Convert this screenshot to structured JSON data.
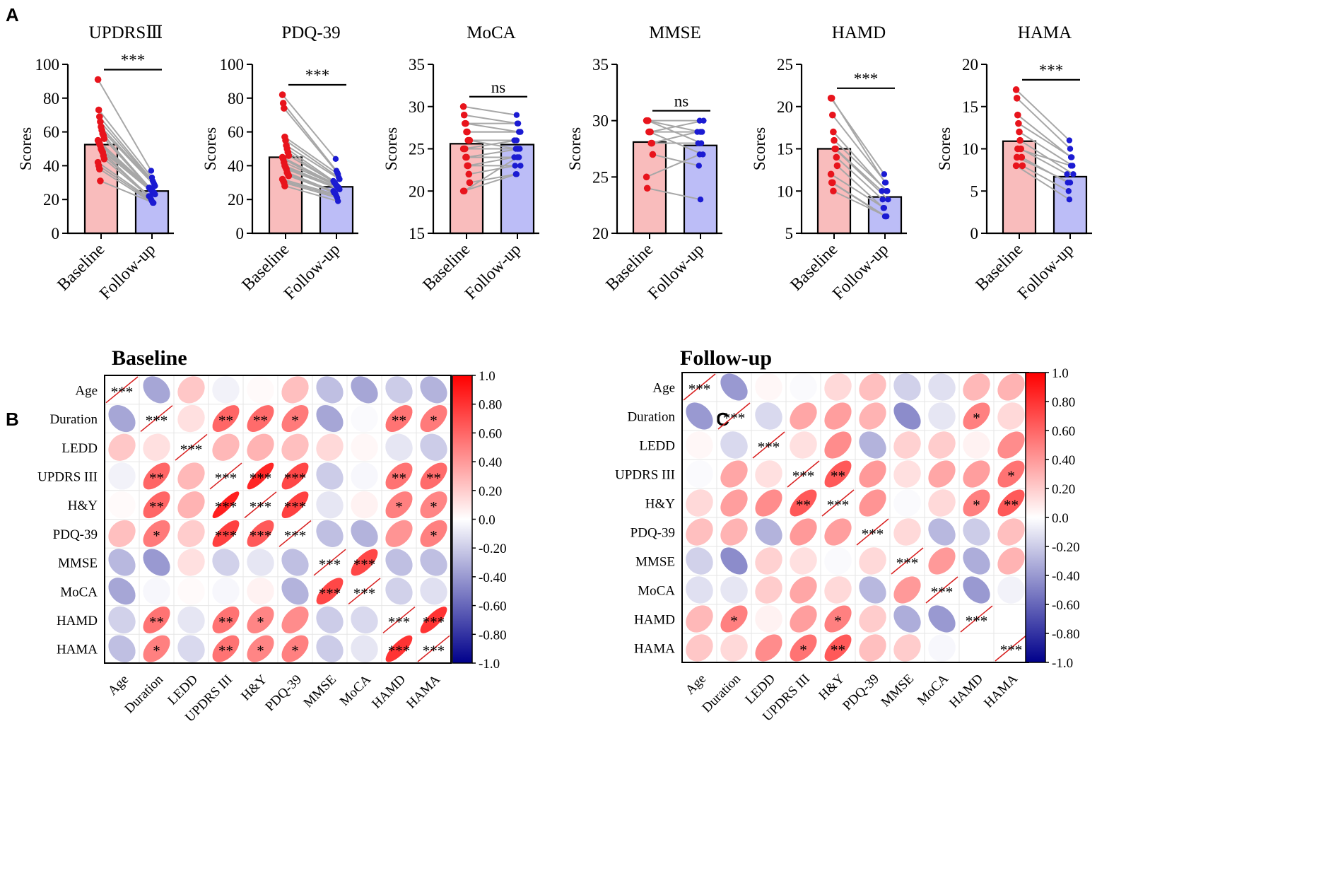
{
  "panel_labels": {
    "a": "A",
    "b": "B",
    "c": "C"
  },
  "colors": {
    "baseline_bar": "#f9bcbc",
    "followup_bar": "#bcbdf7",
    "baseline_dot": "#e8141c",
    "followup_dot": "#1b1bd2",
    "pair_line": "#a7a7a7",
    "pos_strong": "#ff0000",
    "neg_strong": "#00008b"
  },
  "chart_data": [
    {
      "type": "bar",
      "id": "updrs",
      "title": "UPDRSⅢ",
      "ylabel": "Scores",
      "categories": [
        "Baseline",
        "Follow-up"
      ],
      "values": [
        52.5,
        25
      ],
      "ylim": [
        0,
        100
      ],
      "yticks": [
        "0",
        "20",
        "40",
        "60",
        "80",
        "100"
      ],
      "significance": "***",
      "baseline_points": [
        91,
        73,
        69,
        66,
        63,
        61,
        59,
        58,
        56,
        55,
        54,
        53,
        52,
        50,
        49,
        48,
        46,
        44,
        42,
        40,
        38,
        31
      ],
      "followup_points": [
        37,
        33,
        31,
        30,
        29,
        28,
        27,
        27,
        26,
        26,
        25,
        25,
        24,
        24,
        23,
        22,
        22,
        21,
        20,
        19,
        18,
        18
      ]
    },
    {
      "type": "bar",
      "id": "pdq",
      "title": "PDQ-39",
      "ylabel": "Scores",
      "categories": [
        "Baseline",
        "Follow-up"
      ],
      "values": [
        45,
        27.5
      ],
      "ylim": [
        0,
        100
      ],
      "yticks": [
        "0",
        "20",
        "40",
        "60",
        "80",
        "100"
      ],
      "significance": "***",
      "baseline_points": [
        82,
        77,
        74,
        57,
        55,
        52,
        50,
        48,
        46,
        45,
        44,
        42,
        40,
        39,
        38,
        36,
        35,
        34,
        32,
        31,
        30,
        28
      ],
      "followup_points": [
        44,
        37,
        36,
        35,
        33,
        32,
        31,
        30,
        30,
        29,
        28,
        28,
        27,
        27,
        26,
        25,
        24,
        24,
        23,
        22,
        21,
        19
      ]
    },
    {
      "type": "bar",
      "id": "moca",
      "title": "MoCA",
      "ylabel": "Scores",
      "categories": [
        "Baseline",
        "Follow-up"
      ],
      "values": [
        25.6,
        25.5
      ],
      "ylim": [
        15,
        35
      ],
      "yticks": [
        "15",
        "20",
        "25",
        "30",
        "35"
      ],
      "significance": "ns",
      "baseline_points": [
        30,
        29,
        28,
        28,
        27,
        27,
        26,
        26,
        26,
        25,
        25,
        25,
        24,
        24,
        23,
        23,
        22,
        21,
        20,
        20
      ],
      "followup_points": [
        29,
        28,
        28,
        27,
        27,
        27,
        26,
        26,
        25,
        26,
        25,
        25,
        24,
        25,
        23,
        24,
        23,
        22,
        22,
        24
      ]
    },
    {
      "type": "bar",
      "id": "mmse",
      "title": "MMSE",
      "ylabel": "Scores",
      "categories": [
        "Baseline",
        "Follow-up"
      ],
      "values": [
        28.1,
        27.8
      ],
      "ylim": [
        20,
        35
      ],
      "yticks": [
        "20",
        "25",
        "30",
        "35"
      ],
      "significance": "ns",
      "baseline_points": [
        30,
        30,
        30,
        29,
        29,
        29,
        28,
        28,
        27,
        25,
        24
      ],
      "followup_points": [
        30,
        29,
        28,
        29,
        27,
        30,
        29,
        28,
        26,
        27,
        23
      ]
    },
    {
      "type": "bar",
      "id": "hamd",
      "title": "HAMD",
      "ylabel": "Scores",
      "categories": [
        "Baseline",
        "Follow-up"
      ],
      "values": [
        15,
        9.3
      ],
      "ylim": [
        5,
        25
      ],
      "yticks": [
        "5",
        "10",
        "15",
        "20",
        "25"
      ],
      "significance": "***",
      "baseline_points": [
        21,
        21,
        19,
        17,
        16,
        15,
        15,
        14,
        13,
        12,
        11,
        11,
        10
      ],
      "followup_points": [
        12,
        11,
        11,
        10,
        10,
        9,
        10,
        9,
        8,
        8,
        7,
        7,
        7
      ]
    },
    {
      "type": "bar",
      "id": "hama",
      "title": "HAMA",
      "ylabel": "Scores",
      "categories": [
        "Baseline",
        "Follow-up"
      ],
      "values": [
        10.9,
        6.7
      ],
      "ylim": [
        0,
        20
      ],
      "yticks": [
        "0",
        "5",
        "10",
        "15",
        "20"
      ],
      "significance": "***",
      "baseline_points": [
        17,
        16,
        14,
        13,
        12,
        11,
        10,
        9,
        8,
        8,
        9,
        10
      ],
      "followup_points": [
        11,
        10,
        9,
        9,
        8,
        7,
        7,
        6,
        5,
        4,
        6,
        8
      ]
    },
    {
      "type": "heatmap",
      "id": "baseline",
      "title": "Baseline",
      "variables": [
        "Age",
        "Duration",
        "LEDD",
        "UPDRS III",
        "H&Y",
        "PDQ-39",
        "MMSE",
        "MoCA",
        "HAMD",
        "HAMA"
      ],
      "matrix": [
        [
          1.0,
          -0.35,
          0.22,
          -0.05,
          0.02,
          0.25,
          -0.25,
          -0.35,
          -0.2,
          -0.3
        ],
        [
          -0.35,
          1.0,
          0.12,
          0.6,
          0.58,
          0.52,
          -0.35,
          -0.02,
          0.55,
          0.52
        ],
        [
          0.22,
          0.12,
          1.0,
          0.28,
          0.3,
          0.25,
          0.15,
          0.03,
          -0.1,
          -0.2
        ],
        [
          -0.05,
          0.6,
          0.28,
          1.0,
          0.85,
          0.72,
          -0.2,
          -0.03,
          0.55,
          0.58
        ],
        [
          0.02,
          0.6,
          0.3,
          0.88,
          1.0,
          0.75,
          -0.1,
          0.05,
          0.5,
          0.48
        ],
        [
          0.25,
          0.52,
          0.2,
          0.75,
          0.65,
          1.0,
          -0.25,
          -0.3,
          0.42,
          0.5
        ],
        [
          -0.28,
          -0.4,
          0.12,
          -0.18,
          -0.1,
          -0.25,
          1.0,
          0.72,
          -0.25,
          -0.25
        ],
        [
          -0.35,
          -0.03,
          0.02,
          -0.03,
          0.05,
          -0.3,
          0.72,
          1.0,
          -0.18,
          -0.12
        ],
        [
          -0.18,
          0.55,
          -0.1,
          0.55,
          0.48,
          0.45,
          -0.2,
          -0.15,
          1.0,
          0.8
        ],
        [
          -0.25,
          0.5,
          -0.15,
          0.55,
          0.48,
          0.5,
          -0.2,
          -0.1,
          0.8,
          1.0
        ]
      ],
      "stars": [
        [
          "***",
          "",
          "",
          "",
          "",
          "",
          "",
          "",
          "",
          ""
        ],
        [
          "",
          "***",
          "",
          "**",
          "**",
          "*",
          "",
          "",
          "**",
          "*"
        ],
        [
          "",
          "",
          "***",
          "",
          "",
          "",
          "",
          "",
          "",
          ""
        ],
        [
          "",
          "**",
          "",
          "***",
          "***",
          "***",
          "",
          "",
          "**",
          "**"
        ],
        [
          "",
          "**",
          "",
          "***",
          "***",
          "***",
          "",
          "",
          "*",
          "*"
        ],
        [
          "",
          "*",
          "",
          "***",
          "***",
          "***",
          "",
          "",
          "",
          "*"
        ],
        [
          "",
          "",
          "",
          "",
          "",
          "",
          "***",
          "***",
          "",
          ""
        ],
        [
          "",
          "",
          "",
          "",
          "",
          "",
          "***",
          "***",
          "",
          ""
        ],
        [
          "",
          "**",
          "",
          "**",
          "*",
          "",
          "",
          "",
          "***",
          "***"
        ],
        [
          "",
          "*",
          "",
          "**",
          "*",
          "*",
          "",
          "",
          "***",
          "***"
        ]
      ],
      "colorbar_ticks": [
        "1.0",
        "0.80",
        "0.60",
        "0.40",
        "0.20",
        "0.0",
        "-0.20",
        "-0.40",
        "-0.60",
        "-0.80",
        "-1.0"
      ]
    },
    {
      "type": "heatmap",
      "id": "followup",
      "title": "Follow-up",
      "variables": [
        "Age",
        "Duration",
        "LEDD",
        "UPDRS III",
        "H&Y",
        "PDQ-39",
        "MMSE",
        "MoCA",
        "HAMD",
        "HAMA"
      ],
      "matrix": [
        [
          1.0,
          -0.4,
          0.03,
          -0.02,
          0.15,
          0.25,
          -0.18,
          -0.12,
          0.28,
          0.3
        ],
        [
          -0.4,
          1.0,
          -0.15,
          0.35,
          0.38,
          0.3,
          -0.45,
          -0.1,
          0.5,
          0.15
        ],
        [
          0.03,
          -0.15,
          1.0,
          0.12,
          0.45,
          -0.3,
          0.18,
          0.2,
          0.05,
          0.45
        ],
        [
          -0.02,
          0.35,
          0.12,
          1.0,
          0.65,
          0.4,
          0.12,
          0.35,
          0.38,
          0.55
        ],
        [
          0.15,
          0.38,
          0.45,
          0.65,
          1.0,
          0.42,
          -0.02,
          0.15,
          0.5,
          0.65
        ],
        [
          0.25,
          0.3,
          -0.3,
          0.4,
          0.38,
          1.0,
          0.15,
          -0.28,
          -0.2,
          0.25
        ],
        [
          -0.18,
          -0.45,
          0.18,
          0.12,
          -0.02,
          0.15,
          1.0,
          0.4,
          -0.32,
          0.3
        ],
        [
          -0.12,
          -0.1,
          0.2,
          0.35,
          0.15,
          -0.28,
          0.4,
          1.0,
          -0.4,
          -0.05
        ],
        [
          0.28,
          0.5,
          0.05,
          0.38,
          0.5,
          0.2,
          -0.32,
          -0.4,
          1.0,
          0.0
        ],
        [
          0.22,
          0.15,
          0.45,
          0.55,
          0.65,
          0.25,
          0.2,
          -0.03,
          0.0,
          1.0
        ]
      ],
      "stars": [
        [
          "***",
          "",
          "",
          "",
          "",
          "",
          "",
          "",
          "",
          ""
        ],
        [
          "",
          "***",
          "",
          "",
          "",
          "",
          "",
          "",
          "*",
          ""
        ],
        [
          "",
          "",
          "***",
          "",
          "",
          "",
          "",
          "",
          "",
          ""
        ],
        [
          "",
          "",
          "",
          "***",
          "**",
          "",
          "",
          "",
          "",
          "*"
        ],
        [
          "",
          "",
          "",
          "**",
          "***",
          "",
          "",
          "",
          "*",
          "**"
        ],
        [
          "",
          "",
          "",
          "",
          "",
          "***",
          "",
          "",
          "",
          ""
        ],
        [
          "",
          "",
          "",
          "",
          "",
          "",
          "***",
          "",
          "",
          ""
        ],
        [
          "",
          "",
          "",
          "",
          "",
          "",
          "",
          "***",
          "",
          ""
        ],
        [
          "",
          "*",
          "",
          "",
          "*",
          "",
          "",
          "",
          "***",
          ""
        ],
        [
          "",
          "",
          "",
          "*",
          "**",
          "",
          "",
          "",
          "",
          "***"
        ]
      ],
      "colorbar_ticks": [
        "1.0",
        "0.80",
        "0.60",
        "0.40",
        "0.20",
        "0.0",
        "-0.20",
        "-0.40",
        "-0.60",
        "-0.80",
        "-1.0"
      ]
    }
  ]
}
